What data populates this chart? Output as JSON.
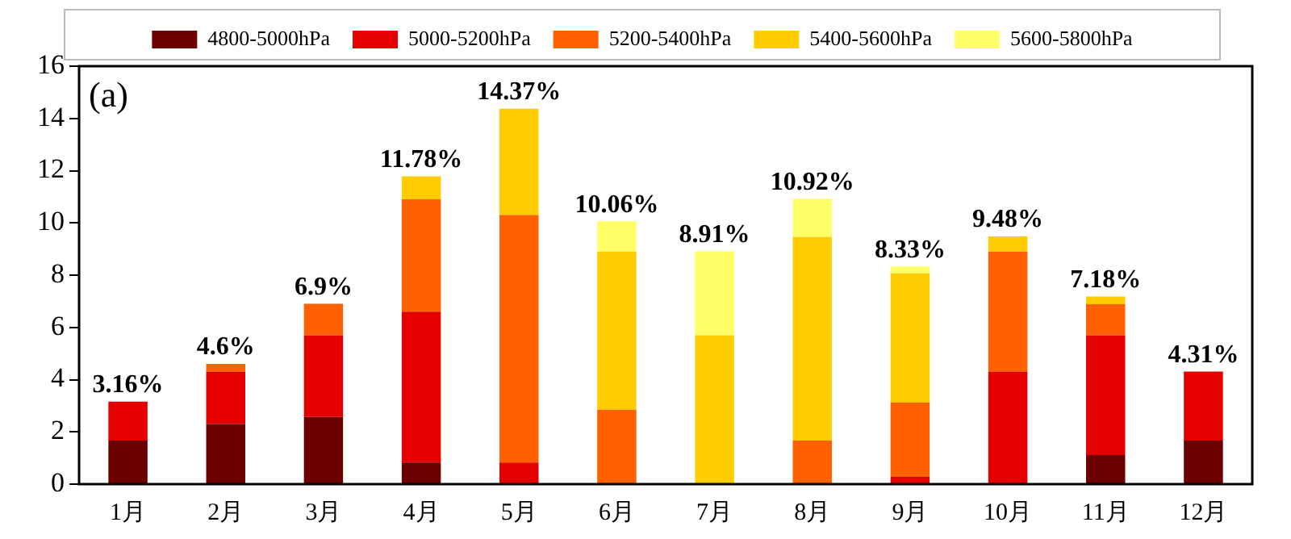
{
  "chart_data": {
    "type": "bar",
    "stacked": true,
    "categories": [
      "1月",
      "2月",
      "3月",
      "4月",
      "5月",
      "6月",
      "7月",
      "8月",
      "9月",
      "10月",
      "11月",
      "12月"
    ],
    "series": [
      {
        "name": "4800-5000hPa",
        "color": "#6b0000",
        "values": [
          1.67,
          2.3,
          2.57,
          0.83,
          0,
          0,
          0,
          0,
          0,
          0,
          1.11,
          1.67
        ]
      },
      {
        "name": "5000-5200hPa",
        "color": "#e50000",
        "values": [
          1.49,
          2.0,
          3.13,
          5.77,
          0.83,
          0,
          0,
          0,
          0.28,
          4.31,
          4.59,
          2.64
        ]
      },
      {
        "name": "5200-5400hPa",
        "color": "#ff6000",
        "values": [
          0,
          0.3,
          1.2,
          4.3,
          9.47,
          2.85,
          0,
          1.67,
          2.85,
          4.59,
          1.19,
          0
        ]
      },
      {
        "name": "5400-5600hPa",
        "color": "#ffcc00",
        "values": [
          0,
          0,
          0,
          0.88,
          4.07,
          6.05,
          5.7,
          7.79,
          4.94,
          0.58,
          0.29,
          0
        ]
      },
      {
        "name": "5600-5800hPa",
        "color": "#ffff66",
        "values": [
          0,
          0,
          0,
          0,
          0,
          1.16,
          3.21,
          1.46,
          0.26,
          0,
          0,
          0
        ]
      }
    ],
    "totals": [
      "3.16%",
      "4.6%",
      "6.9%",
      "11.78%",
      "14.37%",
      "10.06%",
      "8.91%",
      "10.92%",
      "8.33%",
      "9.48%",
      "7.18%",
      "4.31%"
    ],
    "annotations": [
      "(a)"
    ],
    "ylim": [
      0,
      16
    ],
    "yticks": [
      0,
      2,
      4,
      6,
      8,
      10,
      12,
      14,
      16
    ],
    "grid": false,
    "legend": "top"
  }
}
